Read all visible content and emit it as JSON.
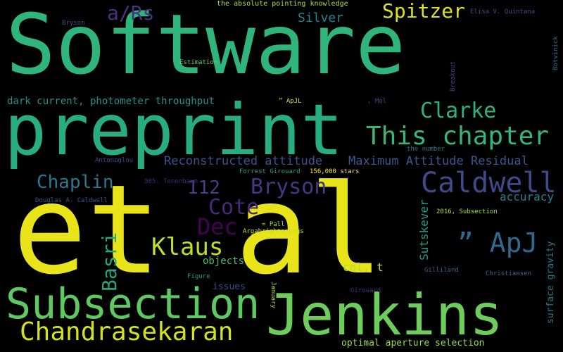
{
  "words": [
    {
      "text": "Software",
      "color": "#2fb47c"
    },
    {
      "text": "preprint",
      "color": "#27ad81"
    },
    {
      "text": "et al",
      "color": "#e8e419"
    },
    {
      "text": "Jenkins",
      "color": "#6ccd5a"
    },
    {
      "text": "Subsection",
      "color": "#5ec962"
    },
    {
      "text": "Chandrasekaran",
      "color": "#d2e21b"
    },
    {
      "text": "Caldwell",
      "color": "#3e4a89"
    },
    {
      "text": "This chapter",
      "color": "#35b779"
    },
    {
      "text": "Spitzer",
      "color": "#dde318"
    },
    {
      "text": "a/Rs",
      "color": "#46327e"
    },
    {
      "text": "Clarke",
      "color": "#2db27d"
    },
    {
      "text": "112",
      "color": "#433e85"
    },
    {
      "text": "Bryson",
      "color": "#453781"
    },
    {
      "text": "Chaplin",
      "color": "#2a788e"
    },
    {
      "text": "Cote",
      "color": "#482878"
    },
    {
      "text": "Dec",
      "color": "#440154"
    },
    {
      "text": "Klaus",
      "color": "#bddf26"
    },
    {
      "text": "” ApJ",
      "color": "#31688e"
    },
    {
      "text": "Basri",
      "color": "#22a884"
    },
    {
      "text": "Silver",
      "color": "#26828e"
    },
    {
      "text": "Reconstructed attitude",
      "color": "#3b528b"
    },
    {
      "text": "Maximum Attitude Residual",
      "color": "#38588c"
    },
    {
      "text": "dark current, photometer throughput",
      "color": "#21918c"
    },
    {
      "text": "accuracy",
      "color": "#287d8e"
    },
    {
      "text": "Sutskever",
      "color": "#1f9e89"
    },
    {
      "text": "col, t",
      "color": "#b5de2b"
    },
    {
      "text": "objects",
      "color": "#44bf70"
    },
    {
      "text": "issues",
      "color": "#3f4788"
    },
    {
      "text": "surface gravity",
      "color": "#2a778e"
    },
    {
      "text": "optimal aperture selection",
      "color": "#95d840"
    },
    {
      "text": "the absolute pointing knowledge",
      "color": "#b2dd2d"
    },
    {
      "text": "Elisa V. Quintana",
      "color": "#3d4e8a"
    },
    {
      "text": "Bryson",
      "color": "#3b518b"
    },
    {
      "text": "Estimation",
      "color": "#63cb5f"
    },
    {
      "text": "Breakout",
      "color": "#414487"
    },
    {
      "text": "Botvinick",
      "color": "#2c718e"
    },
    {
      "text": "” ApJL",
      "color": "#d8e219"
    },
    {
      "text": ", Mol",
      "color": "#3e4989"
    },
    {
      "text": "the number",
      "color": "#2a788e"
    },
    {
      "text": "Antonoglou",
      "color": "#3f4889"
    },
    {
      "text": "Forrest Girouard",
      "color": "#1fa088"
    },
    {
      "text": "156,000 stars",
      "color": "#fde725"
    },
    {
      "text": "985. Tenenbaum",
      "color": "#482475"
    },
    {
      "text": "Douglas A. Caldwell",
      "color": "#3b528b"
    },
    {
      "text": "= Pall",
      "color": "#addc30"
    },
    {
      "text": "Argabrightenings",
      "color": "#c8e020"
    },
    {
      "text": "2016, Subsection",
      "color": "#b8de29"
    },
    {
      "text": "Gilliland",
      "color": "#355f8d"
    },
    {
      "text": "Christiansen",
      "color": "#31688e"
    },
    {
      "text": "Figure",
      "color": "#1f968b"
    },
    {
      "text": "January",
      "color": "#b8de29"
    },
    {
      "text": "Girouard",
      "color": "#472d7b"
    }
  ]
}
